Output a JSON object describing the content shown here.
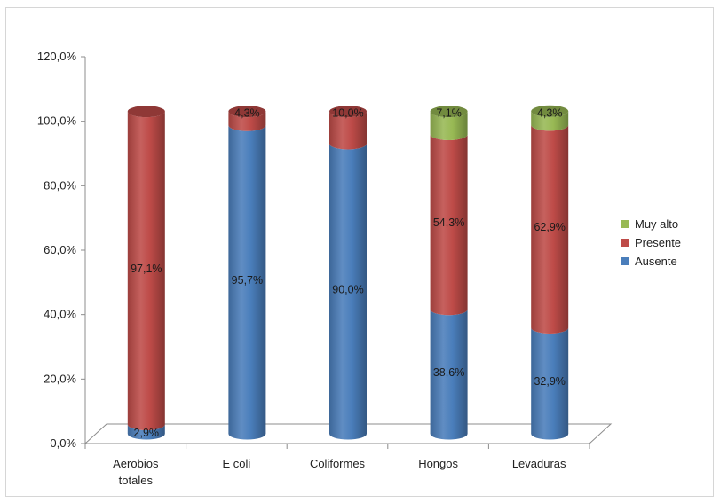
{
  "chart_data": {
    "type": "bar",
    "stacked": true,
    "three_d": true,
    "categories": [
      [
        "Aerobios",
        "totales"
      ],
      [
        "E coli"
      ],
      [
        "Coliformes"
      ],
      [
        "Hongos"
      ],
      [
        "Levaduras"
      ]
    ],
    "series": [
      {
        "name": "Ausente",
        "color": "#4a7ebb",
        "values": [
          2.9,
          95.7,
          90.0,
          38.6,
          32.9
        ],
        "labels": [
          "2,9%",
          "95,7%",
          "90,0%",
          "38,6%",
          "32,9%"
        ]
      },
      {
        "name": "Presente",
        "color": "#be4b48",
        "values": [
          97.1,
          4.3,
          10.0,
          54.3,
          62.9
        ],
        "labels": [
          "97,1%",
          "4,3%",
          "10,0%",
          "54,3%",
          "62,9%"
        ]
      },
      {
        "name": "Muy alto",
        "color": "#98b954",
        "values": [
          0,
          0,
          0,
          7.1,
          4.3
        ],
        "labels": [
          "",
          "",
          "",
          "7,1%",
          "4,3%"
        ]
      }
    ],
    "yticks": [
      "0,0%",
      "20,0%",
      "40,0%",
      "60,0%",
      "80,0%",
      "100,0%",
      "120,0%"
    ],
    "ylim": [
      0,
      120
    ],
    "legend_order": [
      "Muy alto",
      "Presente",
      "Ausente"
    ],
    "legend_position": "right",
    "grid": false,
    "title": "",
    "xlabel": "",
    "ylabel": ""
  }
}
